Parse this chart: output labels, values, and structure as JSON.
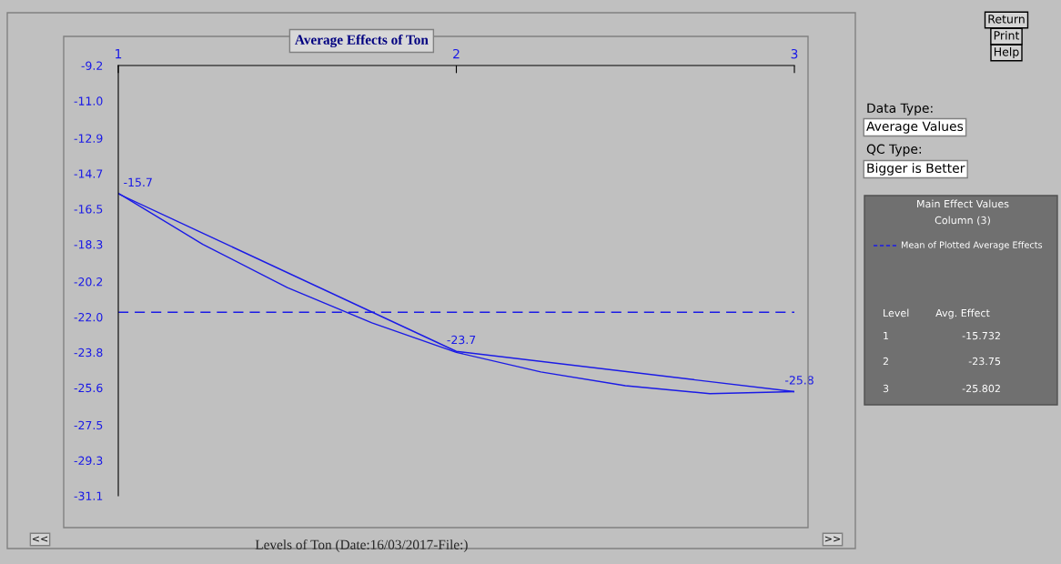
{
  "chart_data": {
    "type": "line",
    "title": "Average Effects of Ton",
    "xlabel": "Levels of Ton (Date:16/03/2017-File:)",
    "x": [
      1,
      2,
      3
    ],
    "xlim": [
      1,
      3
    ],
    "xticks": [
      1,
      2,
      3
    ],
    "ylim": [
      -31.1,
      -9.2
    ],
    "yticks": [
      -9.2,
      {
        "value": -11.0,
        "label": "-11.0"
      },
      -12.9,
      -14.7,
      -16.5,
      -18.3,
      -20.2,
      {
        "value": -22.0,
        "label": "-22.0"
      },
      -23.8,
      -25.6,
      -27.5,
      -29.3,
      -31.1
    ],
    "series": [
      {
        "color": "#1a1ae6",
        "values": [
          -15.732,
          -23.75,
          -25.802
        ],
        "value_labels": [
          "-15.7",
          "-23.7",
          "-25.8"
        ]
      },
      {
        "color": "#1a1ae6",
        "x": [
          1,
          1.25,
          1.5,
          1.75,
          2,
          2.25,
          2.5,
          2.75,
          3
        ],
        "values": [
          -15.7,
          -18.3,
          -20.5,
          -22.3,
          -23.8,
          -24.8,
          -25.5,
          -25.9,
          -25.8
        ]
      }
    ],
    "ref_lines": [
      {
        "axis": "y",
        "value": -21.761,
        "label": "Mean of Plotted Average Effects",
        "color": "#1a1ae6",
        "line_style": "dashed"
      }
    ],
    "grid": false,
    "marker": "none",
    "annotations": [
      "Return",
      "Print",
      "Help",
      "Data Type:",
      "Average Values",
      "QC Type:",
      "Bigger is Better",
      "Main Effect Values",
      "Column (3)",
      "Level",
      "Avg. Effect",
      "1",
      "-15.732",
      "2",
      "-23.75",
      "3",
      "-25.802",
      "<<",
      ">>"
    ]
  }
}
